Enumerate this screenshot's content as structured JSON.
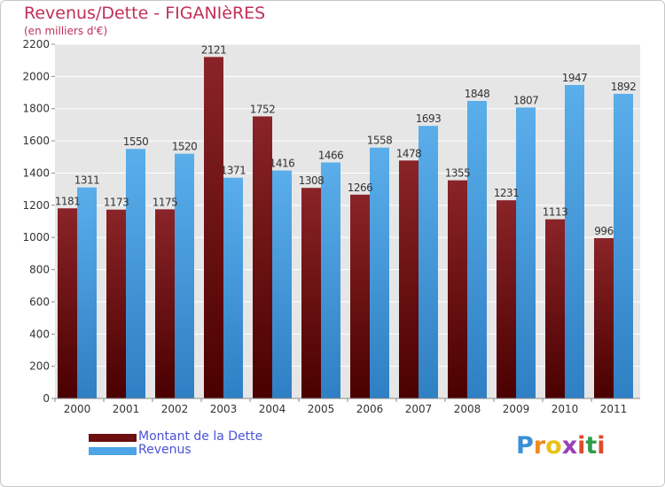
{
  "header": {
    "title": "Revenus/Dette - FIGANIèRES",
    "subtitle": "(en milliers d'€)"
  },
  "chart_data": {
    "type": "bar",
    "categories": [
      "2000",
      "2001",
      "2002",
      "2003",
      "2004",
      "2005",
      "2006",
      "2007",
      "2008",
      "2009",
      "2010",
      "2011"
    ],
    "series": [
      {
        "name": "Montant de la Dette",
        "color": "#6b0f10",
        "values": [
          1181,
          1173,
          1175,
          2121,
          1752,
          1308,
          1266,
          1478,
          1355,
          1231,
          1113,
          996
        ],
        "labels": [
          "1181",
          "1173",
          "1175",
          "2121",
          "1752",
          "1308",
          "1266",
          "1478",
          "1355",
          "1231",
          "1113",
          "996"
        ]
      },
      {
        "name": "Revenus",
        "color": "#4da4e6",
        "values": [
          1311,
          1550,
          1520,
          1371,
          1416,
          1466,
          1558,
          1693,
          1848,
          1807,
          1947,
          1892
        ],
        "labels": [
          "1311",
          "1550",
          "1520",
          "1371",
          "1416",
          "1466",
          "1558",
          "1693",
          "1848",
          "1807",
          "1947",
          "1892"
        ]
      }
    ],
    "ylim": [
      0,
      2200
    ],
    "yticks": [
      0,
      200,
      400,
      600,
      800,
      1000,
      1200,
      1400,
      1600,
      1800,
      2000,
      2200
    ],
    "grid": true,
    "legend_position": "bottom-left"
  },
  "legend": [
    {
      "label": "Montant de la Dette",
      "color": "#6b0f10"
    },
    {
      "label": "Revenus",
      "color": "#4da4e6"
    }
  ],
  "logo": {
    "letters": [
      "P",
      "r",
      "o",
      "x",
      "i",
      "t",
      "i"
    ],
    "colors": [
      "#3a8fd6",
      "#f08a1c",
      "#e8c21a",
      "#9a3fb5",
      "#e04a2a",
      "#2f9d4a",
      "#e04a2a"
    ]
  }
}
